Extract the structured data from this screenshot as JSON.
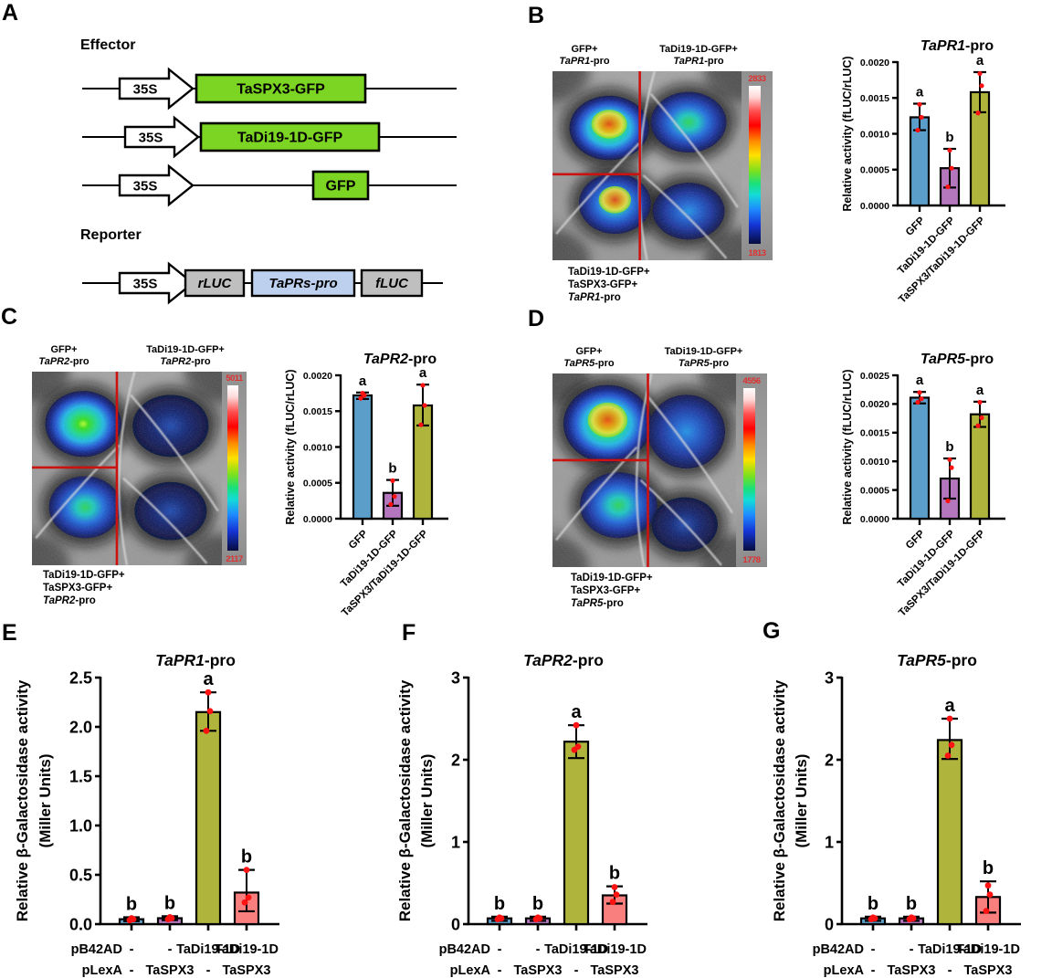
{
  "panels": {
    "A": {
      "label": "A",
      "effector_heading": "Effector",
      "reporter_heading": "Reporter",
      "effector_rows": [
        {
          "promoter": "35S",
          "gene": "TaSPX3-GFP"
        },
        {
          "promoter": "35S",
          "gene": "TaDi19-1D-GFP"
        },
        {
          "promoter": "35S",
          "gene": "GFP"
        }
      ],
      "reporter_row": {
        "promoter": "35S",
        "elements": [
          "rLUC",
          "TaPRs-pro",
          "fLUC"
        ]
      },
      "colors": {
        "gene_box": "#7CD522",
        "luc_box": "#BFBFBF",
        "pro_box": "#BDD0EE",
        "promoter_box": "#FFFFFF"
      }
    },
    "B": {
      "label": "B",
      "leaf": {
        "tl1": "GFP+",
        "tr1": "TaDi19-1D-GFP+",
        "b1": "TaDi19-1D-GFP+",
        "b2": "TaSPX3-GFP+",
        "gene": "TaPR1",
        "pro": "-pro",
        "scale_max": "2833",
        "scale_min": "1813"
      }
    },
    "C": {
      "label": "C",
      "leaf": {
        "tl1": "GFP+",
        "tr1": "TaDi19-1D-GFP+",
        "b1": "TaDi19-1D-GFP+",
        "b2": "TaSPX3-GFP+",
        "gene": "TaPR2",
        "pro": "-pro",
        "scale_max": "5011",
        "scale_min": "2117"
      }
    },
    "D": {
      "label": "D",
      "leaf": {
        "tl1": "GFP+",
        "tr1": "TaDi19-1D-GFP+",
        "b1": "TaDi19-1D-GFP+",
        "b2": "TaSPX3-GFP+",
        "gene": "TaPR5",
        "pro": "-pro",
        "scale_max": "4556",
        "scale_min": "1778"
      }
    },
    "E": {
      "label": "E"
    },
    "F": {
      "label": "F"
    },
    "G": {
      "label": "G"
    }
  },
  "colors": {
    "bar_blue": "#5B9EC9",
    "bar_purple": "#B476BD",
    "bar_olive": "#AFB43C",
    "bar_pink": "#F97F7F",
    "point_red": "#FF1212",
    "scale_text_red": "#E03030",
    "crosshair_red": "#CC1111"
  },
  "chart_data": [
    {
      "id": "B",
      "type": "bar",
      "title_italic": "TaPR1",
      "title_rest": "-pro",
      "ylabel": "Relative activity (fLUC/rLUC)",
      "ylim": [
        0,
        0.002
      ],
      "yticks": [
        "0.0000",
        "0.0005",
        "0.0010",
        "0.0015",
        "0.0020"
      ],
      "ytick_values": [
        0,
        0.0005,
        0.001,
        0.0015,
        0.002
      ],
      "categories": [
        "GFP",
        "TaDi19-1D-GFP",
        "TaSPX3/TaDi19-1D-GFP"
      ],
      "series": [
        {
          "label": "GFP",
          "value": 0.00123,
          "err_low": 0.00105,
          "err_high": 0.00142,
          "letter": "a",
          "color": "#5B9EC9",
          "points": [
            0.00105,
            0.00123,
            0.00141
          ]
        },
        {
          "label": "TaDi19-1D-GFP",
          "value": 0.00052,
          "err_low": 0.00025,
          "err_high": 0.00079,
          "letter": "b",
          "color": "#B476BD",
          "points": [
            0.00026,
            0.00052,
            0.00077
          ]
        },
        {
          "label": "TaSPX3/TaDi19-1D-GFP",
          "value": 0.00158,
          "err_low": 0.0013,
          "err_high": 0.00186,
          "letter": "a",
          "color": "#AFB43C",
          "points": [
            0.00129,
            0.00167,
            0.00184
          ]
        }
      ]
    },
    {
      "id": "C",
      "type": "bar",
      "title_italic": "TaPR2",
      "title_rest": "-pro",
      "ylabel": "Relative activity (fLUC/rLUC)",
      "ylim": [
        0,
        0.002
      ],
      "yticks": [
        "0.0000",
        "0.0005",
        "0.0010",
        "0.0015",
        "0.0020"
      ],
      "ytick_values": [
        0,
        0.0005,
        0.001,
        0.0015,
        0.002
      ],
      "categories": [
        "GFP",
        "TaDi19-1D-GFP",
        "TaSPX3/TaDi19-1D-GFP"
      ],
      "series": [
        {
          "label": "GFP",
          "value": 0.00172,
          "err_low": 0.00167,
          "err_high": 0.00176,
          "letter": "a",
          "color": "#5B9EC9",
          "points": [
            0.00168,
            0.00172,
            0.00175
          ]
        },
        {
          "label": "TaDi19-1D-GFP",
          "value": 0.00036,
          "err_low": 0.00018,
          "err_high": 0.00054,
          "letter": "b",
          "color": "#B476BD",
          "points": [
            0.0002,
            0.00031,
            0.00053
          ]
        },
        {
          "label": "TaSPX3/TaDi19-1D-GFP",
          "value": 0.00158,
          "err_low": 0.0013,
          "err_high": 0.00187,
          "letter": "a",
          "color": "#AFB43C",
          "points": [
            0.00131,
            0.00158,
            0.00186
          ]
        }
      ]
    },
    {
      "id": "D",
      "type": "bar",
      "title_italic": "TaPR5",
      "title_rest": "-pro",
      "ylabel": "Relative activity (fLUC/rLUC)",
      "ylim": [
        0,
        0.0025
      ],
      "yticks": [
        "0.0000",
        "0.0005",
        "0.0010",
        "0.0015",
        "0.0020",
        "0.0025"
      ],
      "ytick_values": [
        0,
        0.0005,
        0.001,
        0.0015,
        0.002,
        0.0025
      ],
      "categories": [
        "GFP",
        "TaDi19-1D-GFP",
        "TaSPX3/TaDi19-1D-GFP"
      ],
      "series": [
        {
          "label": "GFP",
          "value": 0.00211,
          "err_low": 0.00201,
          "err_high": 0.00221,
          "letter": "a",
          "color": "#5B9EC9",
          "points": [
            0.00203,
            0.00209,
            0.0022
          ]
        },
        {
          "label": "TaDi19-1D-GFP",
          "value": 0.0007,
          "err_low": 0.00035,
          "err_high": 0.00105,
          "letter": "b",
          "color": "#B476BD",
          "points": [
            0.00031,
            0.00089,
            0.00103
          ]
        },
        {
          "label": "TaSPX3/TaDi19-1D-GFP",
          "value": 0.00182,
          "err_low": 0.0016,
          "err_high": 0.00204,
          "letter": "a",
          "color": "#AFB43C",
          "points": [
            0.00162,
            0.00176,
            0.00203
          ]
        }
      ]
    },
    {
      "id": "E",
      "type": "bar",
      "title_italic": "TaPR1",
      "title_rest": "-pro",
      "ylabel_line1": "Relative β-Galactosidase activity",
      "ylabel_line2": "(Miller Units)",
      "ylim": [
        0,
        2.5
      ],
      "yticks": [
        "0.0",
        "0.5",
        "1.0",
        "1.5",
        "2.0",
        "2.5"
      ],
      "ytick_values": [
        0,
        0.5,
        1,
        1.5,
        2,
        2.5
      ],
      "x_rows": {
        "row1_label": "pB42AD",
        "row1": [
          "-",
          "-",
          "TaDi19-1D",
          "TaDi19-1D"
        ],
        "row2_label": "pLexA",
        "row2": [
          "-",
          "TaSPX3",
          "-",
          "TaSPX3"
        ]
      },
      "series": [
        {
          "value": 0.05,
          "err_low": 0.03,
          "err_high": 0.07,
          "letter": "b",
          "color": "#5B9EC9",
          "points": [
            0.04,
            0.05,
            0.06
          ]
        },
        {
          "value": 0.06,
          "err_low": 0.04,
          "err_high": 0.08,
          "letter": "b",
          "color": "#B476BD",
          "points": [
            0.05,
            0.06,
            0.07
          ]
        },
        {
          "value": 2.15,
          "err_low": 1.96,
          "err_high": 2.35,
          "letter": "a",
          "color": "#AFB43C",
          "points": [
            1.96,
            2.16,
            2.35
          ]
        },
        {
          "value": 0.32,
          "err_low": 0.13,
          "err_high": 0.55,
          "letter": "b",
          "color": "#F97F7F",
          "points": [
            0.22,
            0.27,
            0.55
          ]
        }
      ]
    },
    {
      "id": "F",
      "type": "bar",
      "title_italic": "TaPR2",
      "title_rest": "-pro",
      "ylabel_line1": "Relative β-Galactosidase activity",
      "ylabel_line2": "(Miller Units)",
      "ylim": [
        0,
        3
      ],
      "yticks": [
        "0",
        "1",
        "2",
        "3"
      ],
      "ytick_values": [
        0,
        1,
        2,
        3
      ],
      "x_rows": {
        "row1_label": "pB42AD",
        "row1": [
          "-",
          "-",
          "TaDi19-1D",
          "TaDi19-1D"
        ],
        "row2_label": "pLexA",
        "row2": [
          "-",
          "TaSPX3",
          "-",
          "TaSPX3"
        ]
      },
      "series": [
        {
          "value": 0.07,
          "err_low": 0.04,
          "err_high": 0.09,
          "letter": "b",
          "color": "#5B9EC9",
          "points": [
            0.06,
            0.07,
            0.08
          ]
        },
        {
          "value": 0.07,
          "err_low": 0.04,
          "err_high": 0.09,
          "letter": "b",
          "color": "#B476BD",
          "points": [
            0.06,
            0.07,
            0.08
          ]
        },
        {
          "value": 2.22,
          "err_low": 2.02,
          "err_high": 2.42,
          "letter": "a",
          "color": "#AFB43C",
          "points": [
            2.12,
            2.16,
            2.42
          ]
        },
        {
          "value": 0.35,
          "err_low": 0.25,
          "err_high": 0.46,
          "letter": "b",
          "color": "#F97F7F",
          "points": [
            0.27,
            0.36,
            0.45
          ]
        }
      ]
    },
    {
      "id": "G",
      "type": "bar",
      "title_italic": "TaPR5",
      "title_rest": "-pro",
      "ylabel_line1": "Relative β-Galactosidase activity",
      "ylabel_line2": "(Miller Units)",
      "ylim": [
        0,
        3
      ],
      "yticks": [
        "0",
        "1",
        "2",
        "3"
      ],
      "ytick_values": [
        0,
        1,
        2,
        3
      ],
      "x_rows": {
        "row1_label": "pB42AD",
        "row1": [
          "-",
          "-",
          "TaDi19-1D",
          "TaDi19-1D"
        ],
        "row2_label": "pLexA",
        "row2": [
          "-",
          "TaSPX3",
          "-",
          "TaSPX3"
        ]
      },
      "series": [
        {
          "value": 0.07,
          "err_low": 0.04,
          "err_high": 0.09,
          "letter": "b",
          "color": "#5B9EC9",
          "points": [
            0.06,
            0.07,
            0.08
          ]
        },
        {
          "value": 0.07,
          "err_low": 0.04,
          "err_high": 0.09,
          "letter": "b",
          "color": "#B476BD",
          "points": [
            0.06,
            0.07,
            0.08
          ]
        },
        {
          "value": 2.24,
          "err_low": 2.01,
          "err_high": 2.5,
          "letter": "a",
          "color": "#AFB43C",
          "points": [
            2.05,
            2.18,
            2.5
          ]
        },
        {
          "value": 0.33,
          "err_low": 0.14,
          "err_high": 0.52,
          "letter": "b",
          "color": "#F97F7F",
          "points": [
            0.16,
            0.36,
            0.47
          ]
        }
      ]
    }
  ]
}
